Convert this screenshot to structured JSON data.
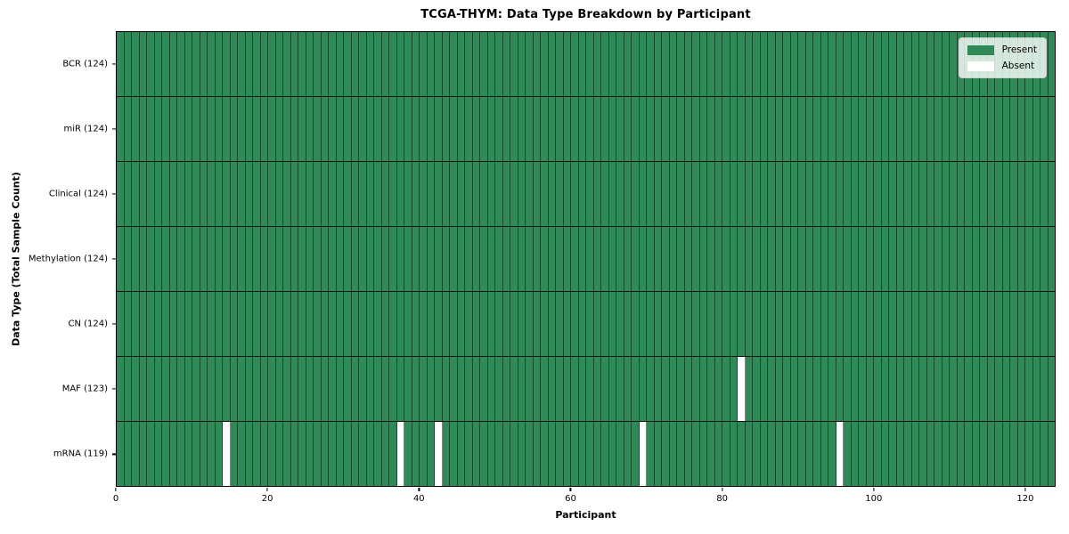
{
  "chart_data": {
    "type": "heatmap",
    "title": "TCGA-THYM: Data Type Breakdown by Participant",
    "xlabel": "Participant",
    "ylabel": "Data Type (Total Sample Count)",
    "n_participants": 124,
    "x_range": [
      0,
      124
    ],
    "x_ticks": [
      0,
      20,
      40,
      60,
      80,
      100,
      120
    ],
    "grid": "cell-borders",
    "rows": [
      {
        "label": "BCR (124)",
        "data_type": "BCR",
        "present_count": 124,
        "absent_participants": []
      },
      {
        "label": "miR (124)",
        "data_type": "miR",
        "present_count": 124,
        "absent_participants": []
      },
      {
        "label": "Clinical (124)",
        "data_type": "Clinical",
        "present_count": 124,
        "absent_participants": []
      },
      {
        "label": "Methylation (124)",
        "data_type": "Methylation",
        "present_count": 124,
        "absent_participants": []
      },
      {
        "label": "CN (124)",
        "data_type": "CN",
        "present_count": 124,
        "absent_participants": []
      },
      {
        "label": "MAF (123)",
        "data_type": "MAF",
        "present_count": 123,
        "absent_participants": [
          82
        ]
      },
      {
        "label": "mRNA (119)",
        "data_type": "mRNA",
        "present_count": 119,
        "absent_participants": [
          14,
          37,
          42,
          69,
          95
        ]
      }
    ],
    "legend": {
      "position": "upper right",
      "entries": [
        {
          "label": "Present",
          "color": "#2e8b57"
        },
        {
          "label": "Absent",
          "color": "#ffffff"
        }
      ]
    },
    "colors": {
      "present": "#2e8b57",
      "absent": "#ffffff"
    }
  }
}
